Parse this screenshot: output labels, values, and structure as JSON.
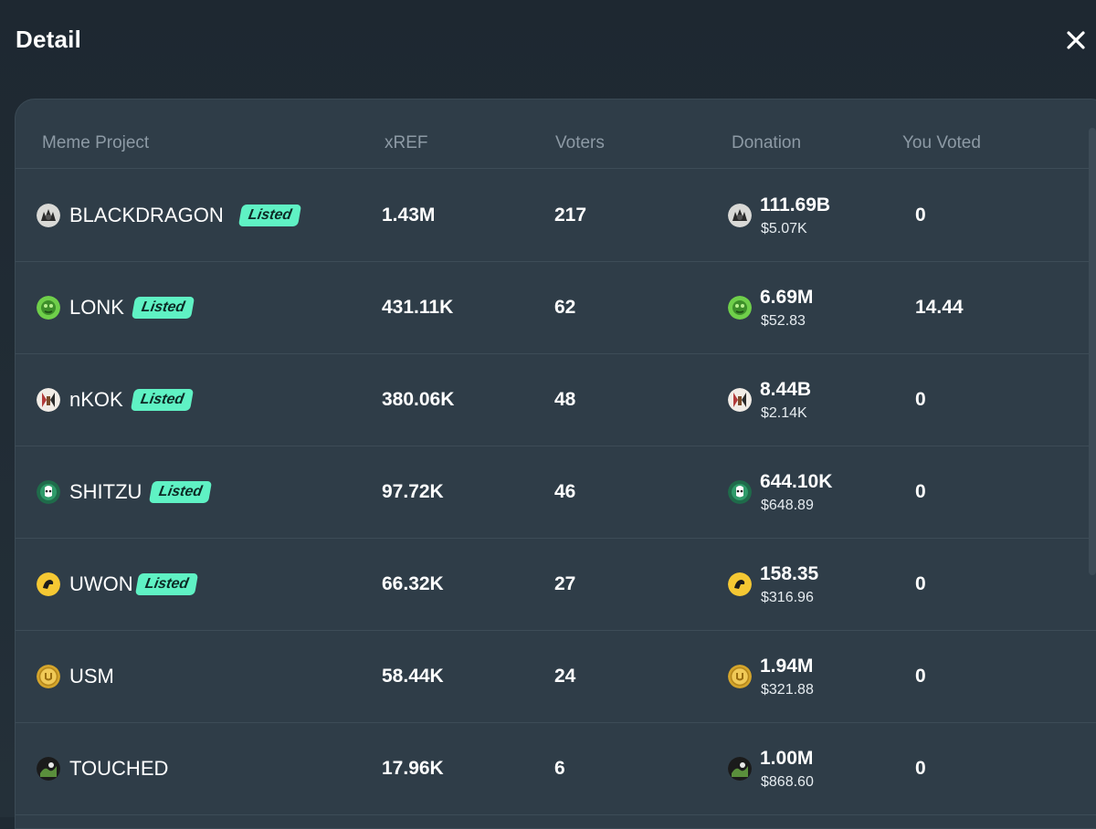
{
  "modal": {
    "title": "Detail"
  },
  "table": {
    "headers": {
      "project": "Meme Project",
      "xref": "xREF",
      "voters": "Voters",
      "donation": "Donation",
      "you_voted": "You Voted"
    },
    "rows": [
      {
        "name": "BLACKDRAGON",
        "badge": "Listed",
        "xref": "1.43M",
        "voters": "217",
        "donation": "111.69B",
        "donation_usd": "$5.07K",
        "you_voted": "0",
        "icon": "blackdragon-icon"
      },
      {
        "name": "LONK",
        "badge": "Listed",
        "xref": "431.11K",
        "voters": "62",
        "donation": "6.69M",
        "donation_usd": "$52.83",
        "you_voted": "14.44",
        "icon": "lonk-icon"
      },
      {
        "name": "nKOK",
        "badge": "Listed",
        "xref": "380.06K",
        "voters": "48",
        "donation": "8.44B",
        "donation_usd": "$2.14K",
        "you_voted": "0",
        "icon": "nkok-icon"
      },
      {
        "name": "SHITZU",
        "badge": "Listed",
        "xref": "97.72K",
        "voters": "46",
        "donation": "644.10K",
        "donation_usd": "$648.89",
        "you_voted": "0",
        "icon": "shitzu-icon"
      },
      {
        "name": "UWON",
        "badge": "Listed",
        "xref": "66.32K",
        "voters": "27",
        "donation": "158.35",
        "donation_usd": "$316.96",
        "you_voted": "0",
        "icon": "uwon-icon"
      },
      {
        "name": "USM",
        "badge": "",
        "xref": "58.44K",
        "voters": "24",
        "donation": "1.94M",
        "donation_usd": "$321.88",
        "you_voted": "0",
        "icon": "usm-icon"
      },
      {
        "name": "TOUCHED",
        "badge": "",
        "xref": "17.96K",
        "voters": "6",
        "donation": "1.00M",
        "donation_usd": "$868.60",
        "you_voted": "0",
        "icon": "touched-icon"
      }
    ]
  },
  "colors": {
    "badge_bg": "#5ff2c4",
    "panel_bg": "#2f3d48",
    "header_text": "#8d9aa5"
  }
}
